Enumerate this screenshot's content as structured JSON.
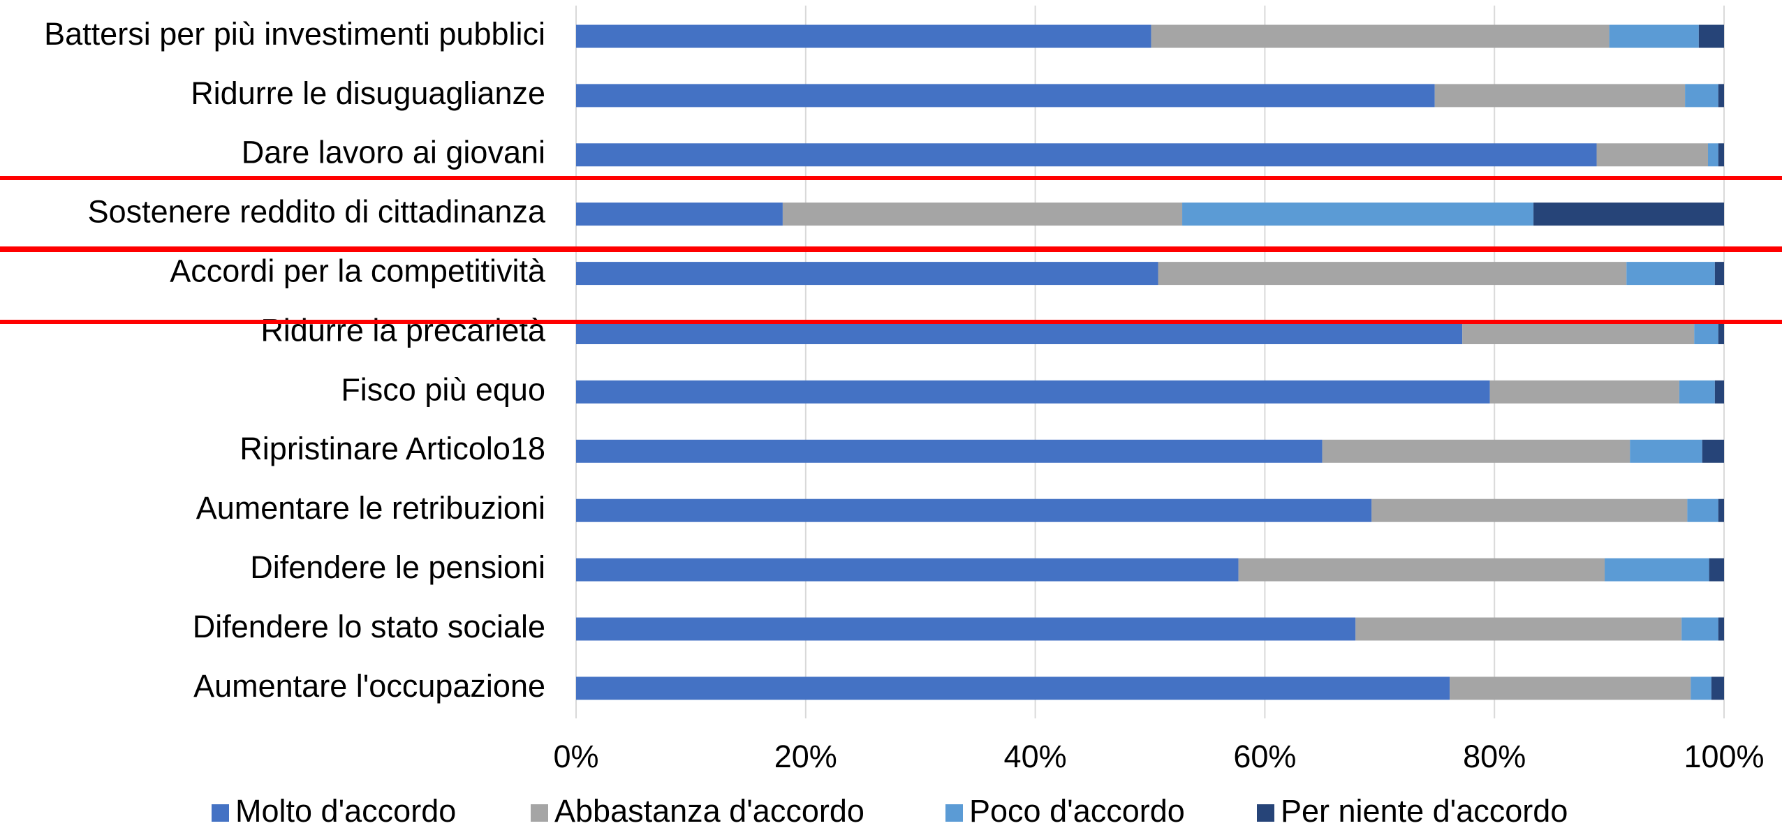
{
  "chart_data": {
    "type": "stacked_barh",
    "categories": [
      "Battersi per più investimenti pubblici",
      "Ridurre le disuguaglianze",
      "Dare lavoro ai giovani",
      "Sostenere reddito di cittadinanza",
      "Accordi per la competitività",
      "Ridurre la precarietà",
      "Fisco più equo",
      "Ripristinare Articolo18",
      "Aumentare le retribuzioni",
      "Difendere le pensioni",
      "Difendere lo stato sociale",
      "Aumentare l'occupazione"
    ],
    "series": [
      {
        "name": "Molto d'accordo",
        "color": "#4472c4",
        "values": [
          50.1,
          74.8,
          88.9,
          18.0,
          50.7,
          77.2,
          79.6,
          65.0,
          69.3,
          57.7,
          67.9,
          76.1
        ]
      },
      {
        "name": "Abbastanza d'accordo",
        "color": "#a5a5a5",
        "values": [
          39.9,
          21.8,
          9.7,
          34.8,
          40.8,
          20.2,
          16.5,
          26.8,
          27.5,
          31.9,
          28.4,
          21.0
        ]
      },
      {
        "name": "Poco d'accordo",
        "color": "#5b9bd5",
        "values": [
          7.8,
          2.9,
          0.9,
          30.6,
          7.7,
          2.1,
          3.1,
          6.3,
          2.7,
          9.1,
          3.2,
          1.8
        ]
      },
      {
        "name": "Per niente d'accordo",
        "color": "#264478",
        "values": [
          2.2,
          0.5,
          0.5,
          16.6,
          0.8,
          0.5,
          0.8,
          1.9,
          0.5,
          1.3,
          0.5,
          1.1
        ]
      }
    ],
    "xlim": [
      0,
      100
    ],
    "xticks": [
      {
        "value": 0,
        "label": "0%"
      },
      {
        "value": 20,
        "label": "20%"
      },
      {
        "value": 40,
        "label": "40%"
      },
      {
        "value": 60,
        "label": "60%"
      },
      {
        "value": 80,
        "label": "80%"
      },
      {
        "value": 100,
        "label": "100%"
      }
    ],
    "grid": true,
    "legend": "bottom"
  }
}
